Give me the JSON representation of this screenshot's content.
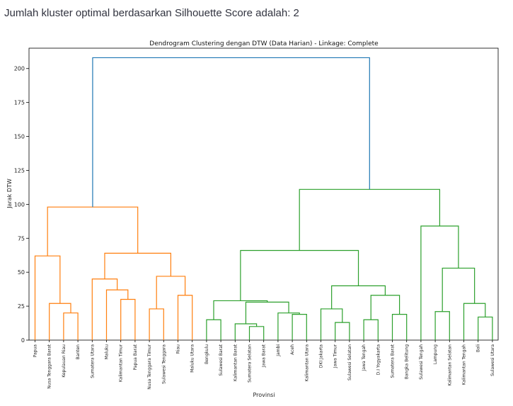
{
  "header": {
    "result_text": "Jumlah kluster optimal berdasarkan Silhouette Score adalah: 2"
  },
  "colors": {
    "cluster_orange": "#ff7f0e",
    "cluster_green": "#2ca02c",
    "root_blue": "#1f77b4",
    "axis": "#000000"
  },
  "chart_data": {
    "type": "dendrogram",
    "title": "Dendrogram Clustering dengan DTW (Data Harian) - Linkage: Complete",
    "xlabel": "Provinsi",
    "ylabel": "Jarak DTW",
    "ylim": [
      0,
      215
    ],
    "yticks": [
      0,
      25,
      50,
      75,
      100,
      125,
      150,
      175,
      200
    ],
    "leaves": [
      "Papua",
      "Nusa Tenggara Barat",
      "Kepulauan Riau",
      "Banten",
      "Sumatera Utara",
      "Maluku",
      "Kalimantan Timur",
      "Papua Barat",
      "Nusa Tenggara Timur",
      "Sulawesi Tenggara",
      "Riau",
      "Maluku Utara",
      "Bengkulu",
      "Sulawesi Barat",
      "Kalimantan Barat",
      "Sumatera Selatan",
      "Jawa Barat",
      "Jambi",
      "Aceh",
      "Kalimantan Utara",
      "DKI Jakarta",
      "Jawa Timur",
      "Sulawesi Selatan",
      "Jawa Tengah",
      "D.I Yogyakarta",
      "Sumatera Barat",
      "Bangka Belitung",
      "Sulawesi Tengah",
      "Lampung",
      "Kalimantan Selatan",
      "Kalimantan Tengah",
      "Bali",
      "Sulawesi Utara"
    ],
    "merges": [
      {
        "left": "L2",
        "right": "L3",
        "height": 20,
        "cluster": "orange"
      },
      {
        "left": "L1",
        "right": "N0",
        "height": 27,
        "cluster": "orange"
      },
      {
        "left": "L0",
        "right": "N1",
        "height": 62,
        "cluster": "orange"
      },
      {
        "left": "L6",
        "right": "L7",
        "height": 30,
        "cluster": "orange"
      },
      {
        "left": "L5",
        "right": "N3",
        "height": 37,
        "cluster": "orange"
      },
      {
        "left": "L4",
        "right": "N4",
        "height": 45,
        "cluster": "orange"
      },
      {
        "left": "L8",
        "right": "L9",
        "height": 23,
        "cluster": "orange"
      },
      {
        "left": "L10",
        "right": "L11",
        "height": 33,
        "cluster": "orange"
      },
      {
        "left": "N6",
        "right": "N7",
        "height": 47,
        "cluster": "orange"
      },
      {
        "left": "N5",
        "right": "N8",
        "height": 64,
        "cluster": "orange"
      },
      {
        "left": "N2",
        "right": "N9",
        "height": 98,
        "cluster": "orange"
      },
      {
        "left": "L12",
        "right": "L13",
        "height": 15,
        "cluster": "green"
      },
      {
        "left": "L15",
        "right": "L16",
        "height": 10,
        "cluster": "green"
      },
      {
        "left": "L14",
        "right": "N12",
        "height": 12,
        "cluster": "green"
      },
      {
        "left": "L18",
        "right": "L19",
        "height": 19,
        "cluster": "green"
      },
      {
        "left": "L17",
        "right": "N14",
        "height": 20,
        "cluster": "green"
      },
      {
        "left": "N13",
        "right": "N15",
        "height": 28,
        "cluster": "green"
      },
      {
        "left": "N11",
        "right": "N16",
        "height": 29,
        "cluster": "green"
      },
      {
        "left": "L21",
        "right": "L22",
        "height": 13,
        "cluster": "green"
      },
      {
        "left": "L20",
        "right": "N18",
        "height": 23,
        "cluster": "green"
      },
      {
        "left": "L23",
        "right": "L24",
        "height": 15,
        "cluster": "green"
      },
      {
        "left": "L25",
        "right": "L26",
        "height": 19,
        "cluster": "green"
      },
      {
        "left": "N20",
        "right": "N21",
        "height": 33,
        "cluster": "green"
      },
      {
        "left": "N19",
        "right": "N22",
        "height": 40,
        "cluster": "green"
      },
      {
        "left": "N17",
        "right": "N23",
        "height": 66,
        "cluster": "green"
      },
      {
        "left": "L28",
        "right": "L29",
        "height": 21,
        "cluster": "green"
      },
      {
        "left": "L31",
        "right": "L32",
        "height": 17,
        "cluster": "green"
      },
      {
        "left": "L30",
        "right": "N26",
        "height": 27,
        "cluster": "green"
      },
      {
        "left": "N25",
        "right": "N27",
        "height": 53,
        "cluster": "green"
      },
      {
        "left": "L27",
        "right": "N28",
        "height": 84,
        "cluster": "green"
      },
      {
        "left": "N24",
        "right": "N29",
        "height": 111,
        "cluster": "green"
      },
      {
        "left": "N10",
        "right": "N30",
        "height": 208,
        "cluster": "root"
      }
    ]
  }
}
